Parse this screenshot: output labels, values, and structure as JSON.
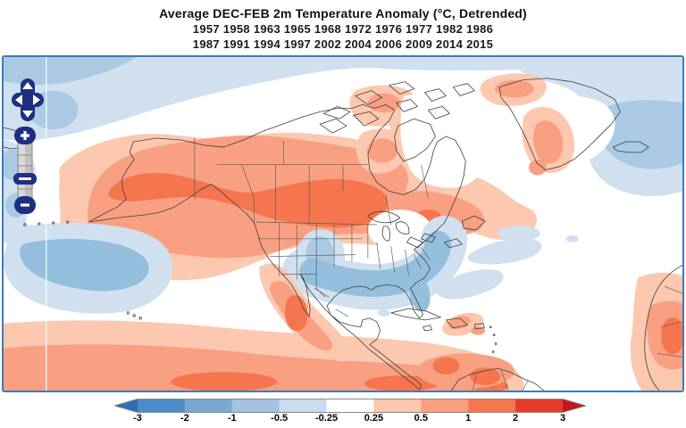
{
  "header": {
    "title": "Average DEC-FEB 2m Temperature Anomaly (°C, Detrended)",
    "years_line1": "1957 1958 1963 1965 1968 1972 1976 1977 1982 1986",
    "years_line2": "1987 1991 1994 1997 2002 2004 2006 2009 2014 2015"
  },
  "map": {
    "frame_color": "#3b7cba",
    "graticule_color": "#ffffff",
    "coastline_color": "#3f3f3f",
    "controls": {
      "pan_directions": [
        "up",
        "left",
        "right",
        "down"
      ],
      "zoom_in_label": "+",
      "zoom_out_label": "−",
      "control_color": "#1e2f80"
    }
  },
  "chart_data": {
    "type": "heatmap",
    "subtype": "filled-contour-geographic-map",
    "title": "Average DEC-FEB 2m Temperature Anomaly (°C, Detrended)",
    "units": "°C",
    "region": "North America and adjacent North Pacific / North Atlantic oceans",
    "composite_years": [
      1957,
      1958,
      1963,
      1965,
      1968,
      1972,
      1976,
      1977,
      1982,
      1986,
      1987,
      1991,
      1994,
      1997,
      2002,
      2004,
      2006,
      2009,
      2014,
      2015
    ],
    "colorbar": {
      "orientation": "horizontal",
      "tick_labels": [
        "-3",
        "-2",
        "-1",
        "-0.5",
        "-0.25",
        "0.25",
        "0.5",
        "1",
        "2",
        "3"
      ],
      "segment_colors": [
        "#4d8cc8",
        "#79a9d3",
        "#a3c3e1",
        "#c9ddef",
        "#ffffff",
        "#fbc7ae",
        "#f9a083",
        "#f5764e",
        "#e73b2a"
      ],
      "under_arrow_color": "#2f6db6",
      "over_arrow_color": "#c2181d",
      "outline_color": "#8a8a8a"
    },
    "anomaly_features": [
      {
        "region": "Alaska, interior western Canada, northern U.S. Plains",
        "anomaly_c": "+1 to +2"
      },
      {
        "region": "Canadian Arctic Archipelago, Hudson Bay, Quebec/Labrador",
        "anomaly_c": "+0.5 to +1"
      },
      {
        "region": "West Greenland coast",
        "anomaly_c": "+0.5 to +1"
      },
      {
        "region": "Central U.S. (Kansas–Ohio valley)",
        "anomaly_c": "-0.25 to +0.25 (near zero)"
      },
      {
        "region": "Texas, Gulf Coast, Southeast U.S., East Coast",
        "anomaly_c": "-0.5 to -1"
      },
      {
        "region": "Central North Pacific",
        "anomaly_c": "-0.5 to -1"
      },
      {
        "region": "Arctic Ocean fringe and North Atlantic near Iceland",
        "anomaly_c": "-0.25 to -0.5"
      },
      {
        "region": "Subtropical band, Mexico, Caribbean, northern South America",
        "anomaly_c": "+0.5 to +1"
      },
      {
        "region": "West Africa",
        "anomaly_c": "+0.5 to +1"
      }
    ]
  }
}
